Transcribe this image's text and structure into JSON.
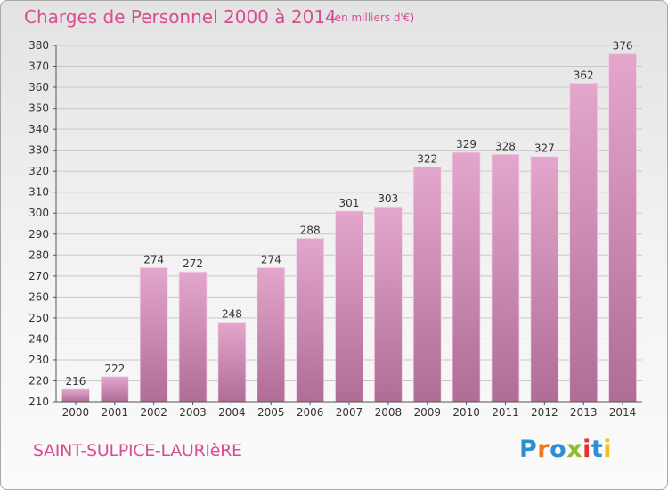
{
  "header": {
    "title": "Charges de Personnel 2000 à 2014",
    "subtitle": "(en milliers d'€)"
  },
  "footer": {
    "commune": "SAINT-SULPICE-LAURIèRE",
    "logo_text": "Proxiti"
  },
  "colors": {
    "title": "#d94c8f",
    "bar_top": "#e4a6cc",
    "bar_bottom": "#b06d96",
    "logo": [
      "#2e8fd0",
      "#f07820",
      "#2e8fd0",
      "#8cbf26",
      "#e83030",
      "#2e8fd0",
      "#f0c020"
    ]
  },
  "chart_data": {
    "type": "bar",
    "title": "Charges de Personnel 2000 à 2014",
    "subtitle": "(en milliers d'€)",
    "categories": [
      "2000",
      "2001",
      "2002",
      "2003",
      "2004",
      "2005",
      "2006",
      "2007",
      "2008",
      "2009",
      "2010",
      "2011",
      "2012",
      "2013",
      "2014"
    ],
    "values": [
      216,
      222,
      274,
      272,
      248,
      274,
      288,
      301,
      303,
      322,
      329,
      328,
      327,
      362,
      376
    ],
    "ylim": [
      210,
      380
    ],
    "yticks": [
      210,
      220,
      230,
      240,
      250,
      260,
      270,
      280,
      290,
      300,
      310,
      320,
      330,
      340,
      350,
      360,
      370,
      380
    ],
    "grid": true
  }
}
